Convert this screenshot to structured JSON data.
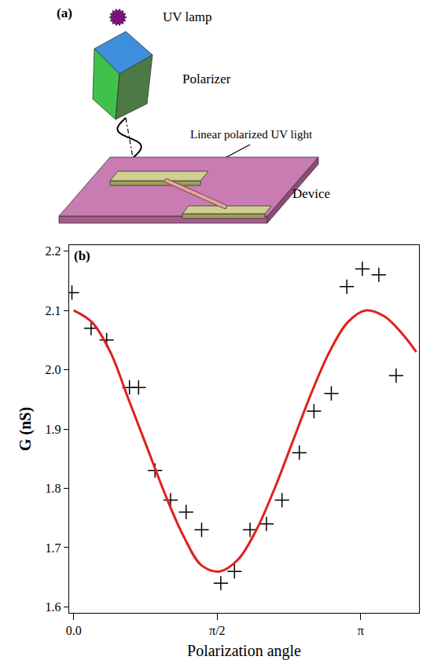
{
  "diagram": {
    "panel_label": "(a)",
    "lamp_label": "UV lamp",
    "polarizer_label": "Polarizer",
    "light_label": "Linear polarized UV light",
    "device_label": "Device"
  },
  "chart_data": {
    "type": "scatter",
    "panel_label": "(b)",
    "x_label": "Polarization angle",
    "y_label": "G (nS)",
    "xlim": [
      -0.05,
      3.78
    ],
    "xticks": [
      {
        "value": 0,
        "label": "0.0"
      },
      {
        "value": 1.5708,
        "label": "π/2"
      },
      {
        "value": 3.1416,
        "label": "π"
      }
    ],
    "ylim": [
      1.59,
      2.21
    ],
    "yticks": [
      {
        "value": 1.6,
        "label": "1.6"
      },
      {
        "value": 1.7,
        "label": "1.7"
      },
      {
        "value": 1.8,
        "label": "1.8"
      },
      {
        "value": 1.9,
        "label": "1.9"
      },
      {
        "value": 2.0,
        "label": "2.0"
      },
      {
        "value": 2.1,
        "label": "2.1"
      },
      {
        "value": 2.2,
        "label": "2.2"
      }
    ],
    "grid": false,
    "series": [
      {
        "type": "scatter",
        "marker": "plus",
        "color": "#000000",
        "x": [
          -0.02,
          0.19,
          0.36,
          0.61,
          0.71,
          0.89,
          1.06,
          1.23,
          1.4,
          1.61,
          1.76,
          1.93,
          2.11,
          2.28,
          2.47,
          2.63,
          2.82,
          2.99,
          3.16,
          3.34,
          3.53
        ],
        "values": [
          2.13,
          2.07,
          2.05,
          1.97,
          1.97,
          1.83,
          1.78,
          1.76,
          1.73,
          1.64,
          1.66,
          1.73,
          1.74,
          1.78,
          1.86,
          1.93,
          1.96,
          2.14,
          2.17,
          2.16,
          1.99
        ]
      },
      {
        "type": "line",
        "line_style": "solid",
        "color": "#e0201b",
        "x": [
          0,
          0.2,
          0.4,
          0.6,
          0.8,
          1.0,
          1.2,
          1.4,
          1.6,
          1.8,
          2.0,
          2.2,
          2.4,
          2.6,
          2.8,
          3.0,
          3.2,
          3.4,
          3.6,
          3.75
        ],
        "values": [
          2.1,
          2.08,
          2.03,
          1.95,
          1.87,
          1.79,
          1.72,
          1.67,
          1.66,
          1.68,
          1.73,
          1.8,
          1.88,
          1.96,
          2.03,
          2.08,
          2.1,
          2.09,
          2.06,
          2.03
        ]
      }
    ]
  }
}
